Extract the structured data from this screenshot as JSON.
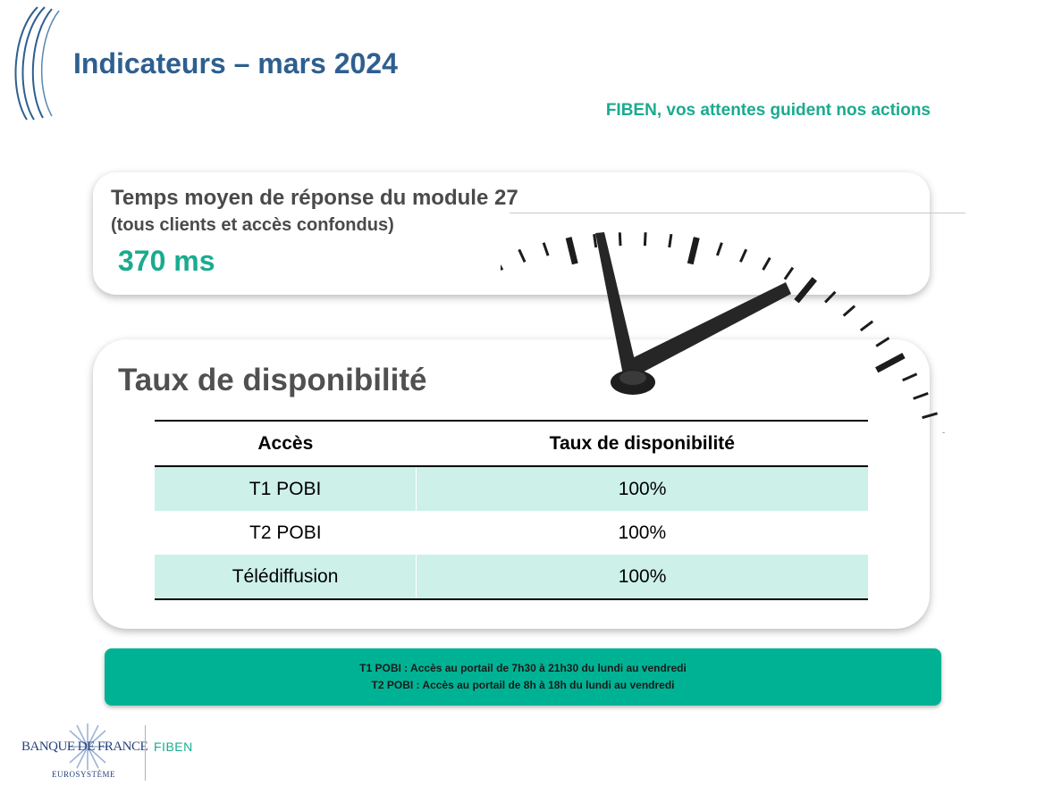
{
  "header": {
    "title": "Indicateurs – mars 2024",
    "tagline": "FIBEN, vos attentes guident nos actions"
  },
  "response_time": {
    "title": "Temps  moyen de réponse du module 27",
    "subtitle": "(tous clients et accès confondus)",
    "value": "370 ms"
  },
  "availability": {
    "title": "Taux de disponibilité",
    "columns": [
      "Accès",
      "Taux de disponibilité"
    ],
    "rows": [
      [
        "T1 POBI",
        "100%"
      ],
      [
        "T2 POBI",
        "100%"
      ],
      [
        "Télédiffusion",
        "100%"
      ]
    ]
  },
  "notes": [
    "T1 POBI : Accès au portail de 7h30 à 21h30 du lundi au vendredi",
    "T2 POBI : Accès au portail de 8h à 18h du lundi au vendredi"
  ],
  "footer": {
    "logo_name": "BANQUE DE FRANCE",
    "logo_sub": "EUROSYSTÈME",
    "product": "FIBEN"
  },
  "colors": {
    "title": "#2e5f8f",
    "accent": "#1aab8f",
    "note_background": "#00b294",
    "table_row_shade": "#cdf0e9"
  },
  "icons": [
    "bracket-decoration-icon",
    "clock-icon",
    "banque-de-france-star-icon"
  ]
}
